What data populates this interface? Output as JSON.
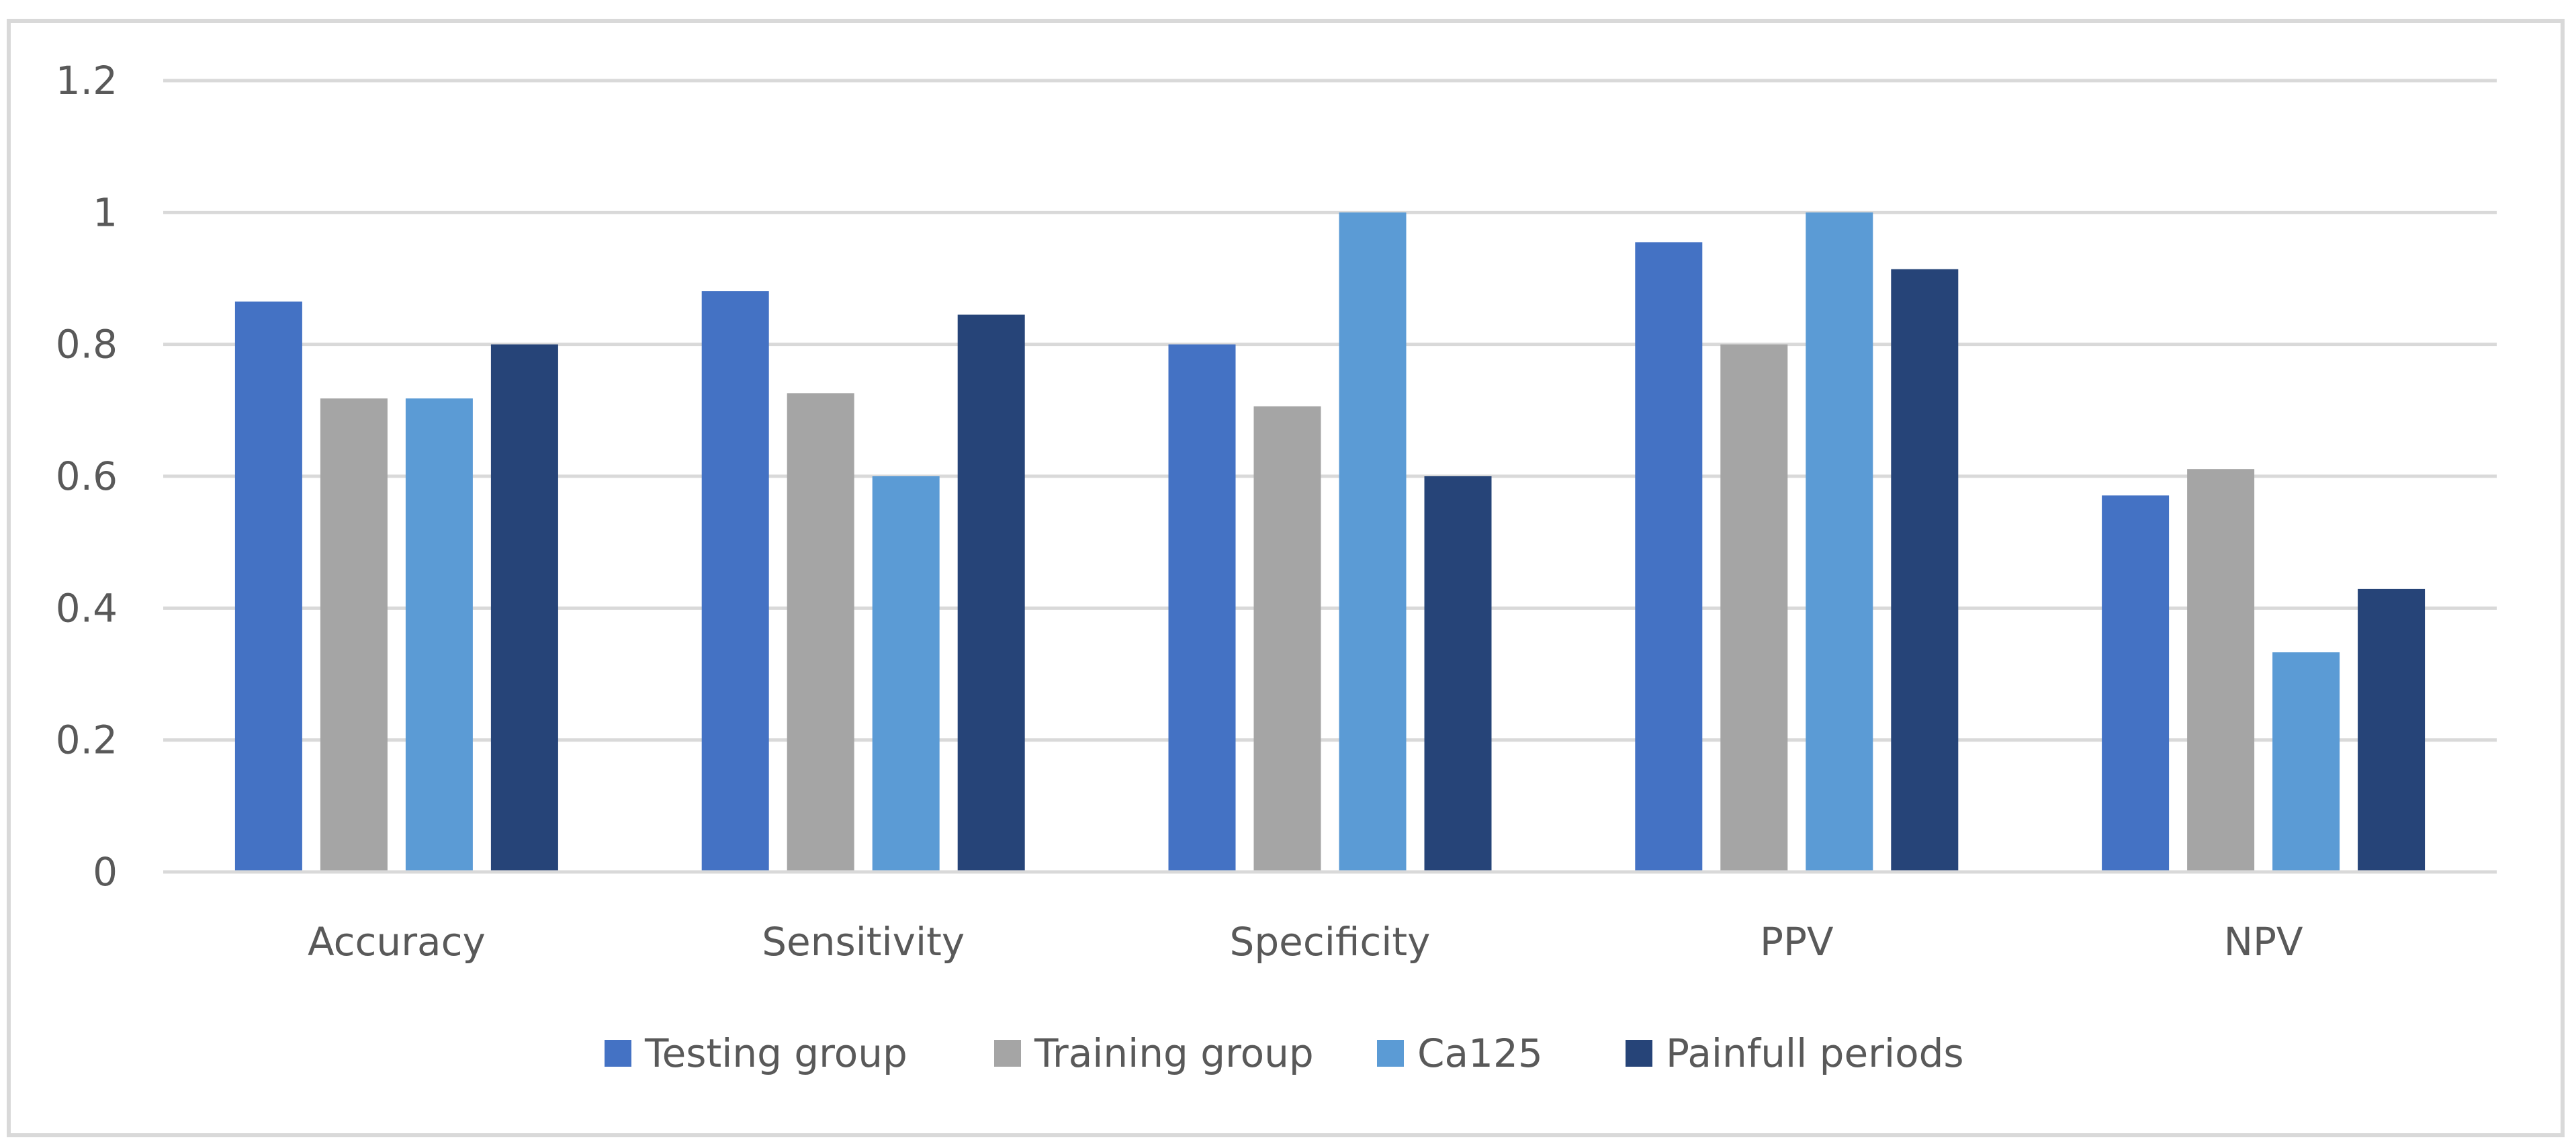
{
  "chart_data": {
    "type": "bar",
    "title": "",
    "xlabel": "",
    "ylabel": "",
    "categories": [
      "Accuracy",
      "Sensitivity",
      "Specificity",
      "PPV",
      "NPV"
    ],
    "series": [
      {
        "name": "Testing group",
        "color": "#4472c4",
        "values": [
          0.865,
          0.881,
          0.8,
          0.955,
          0.571
        ]
      },
      {
        "name": "Training group",
        "color": "#a5a5a5",
        "values": [
          0.718,
          0.726,
          0.706,
          0.8,
          0.611
        ]
      },
      {
        "name": "Ca125",
        "color": "#5b9bd5",
        "values": [
          0.718,
          0.6,
          1.0,
          1.0,
          0.333
        ]
      },
      {
        "name": "Painfull periods",
        "color": "#264478",
        "values": [
          0.8,
          0.845,
          0.6,
          0.914,
          0.429
        ]
      }
    ],
    "ylim": [
      0,
      1.2
    ],
    "yticks": [
      "0",
      "0.2",
      "0.4",
      "0.6",
      "0.8",
      "1",
      "1.2"
    ],
    "ytick_values": [
      0,
      0.2,
      0.4,
      0.6,
      0.8,
      1.0,
      1.2
    ],
    "grid": true,
    "legend_position": "bottom",
    "colors": {
      "grid": "#d9d9d9",
      "text": "#595959",
      "frame": "#d9d9d9"
    }
  }
}
